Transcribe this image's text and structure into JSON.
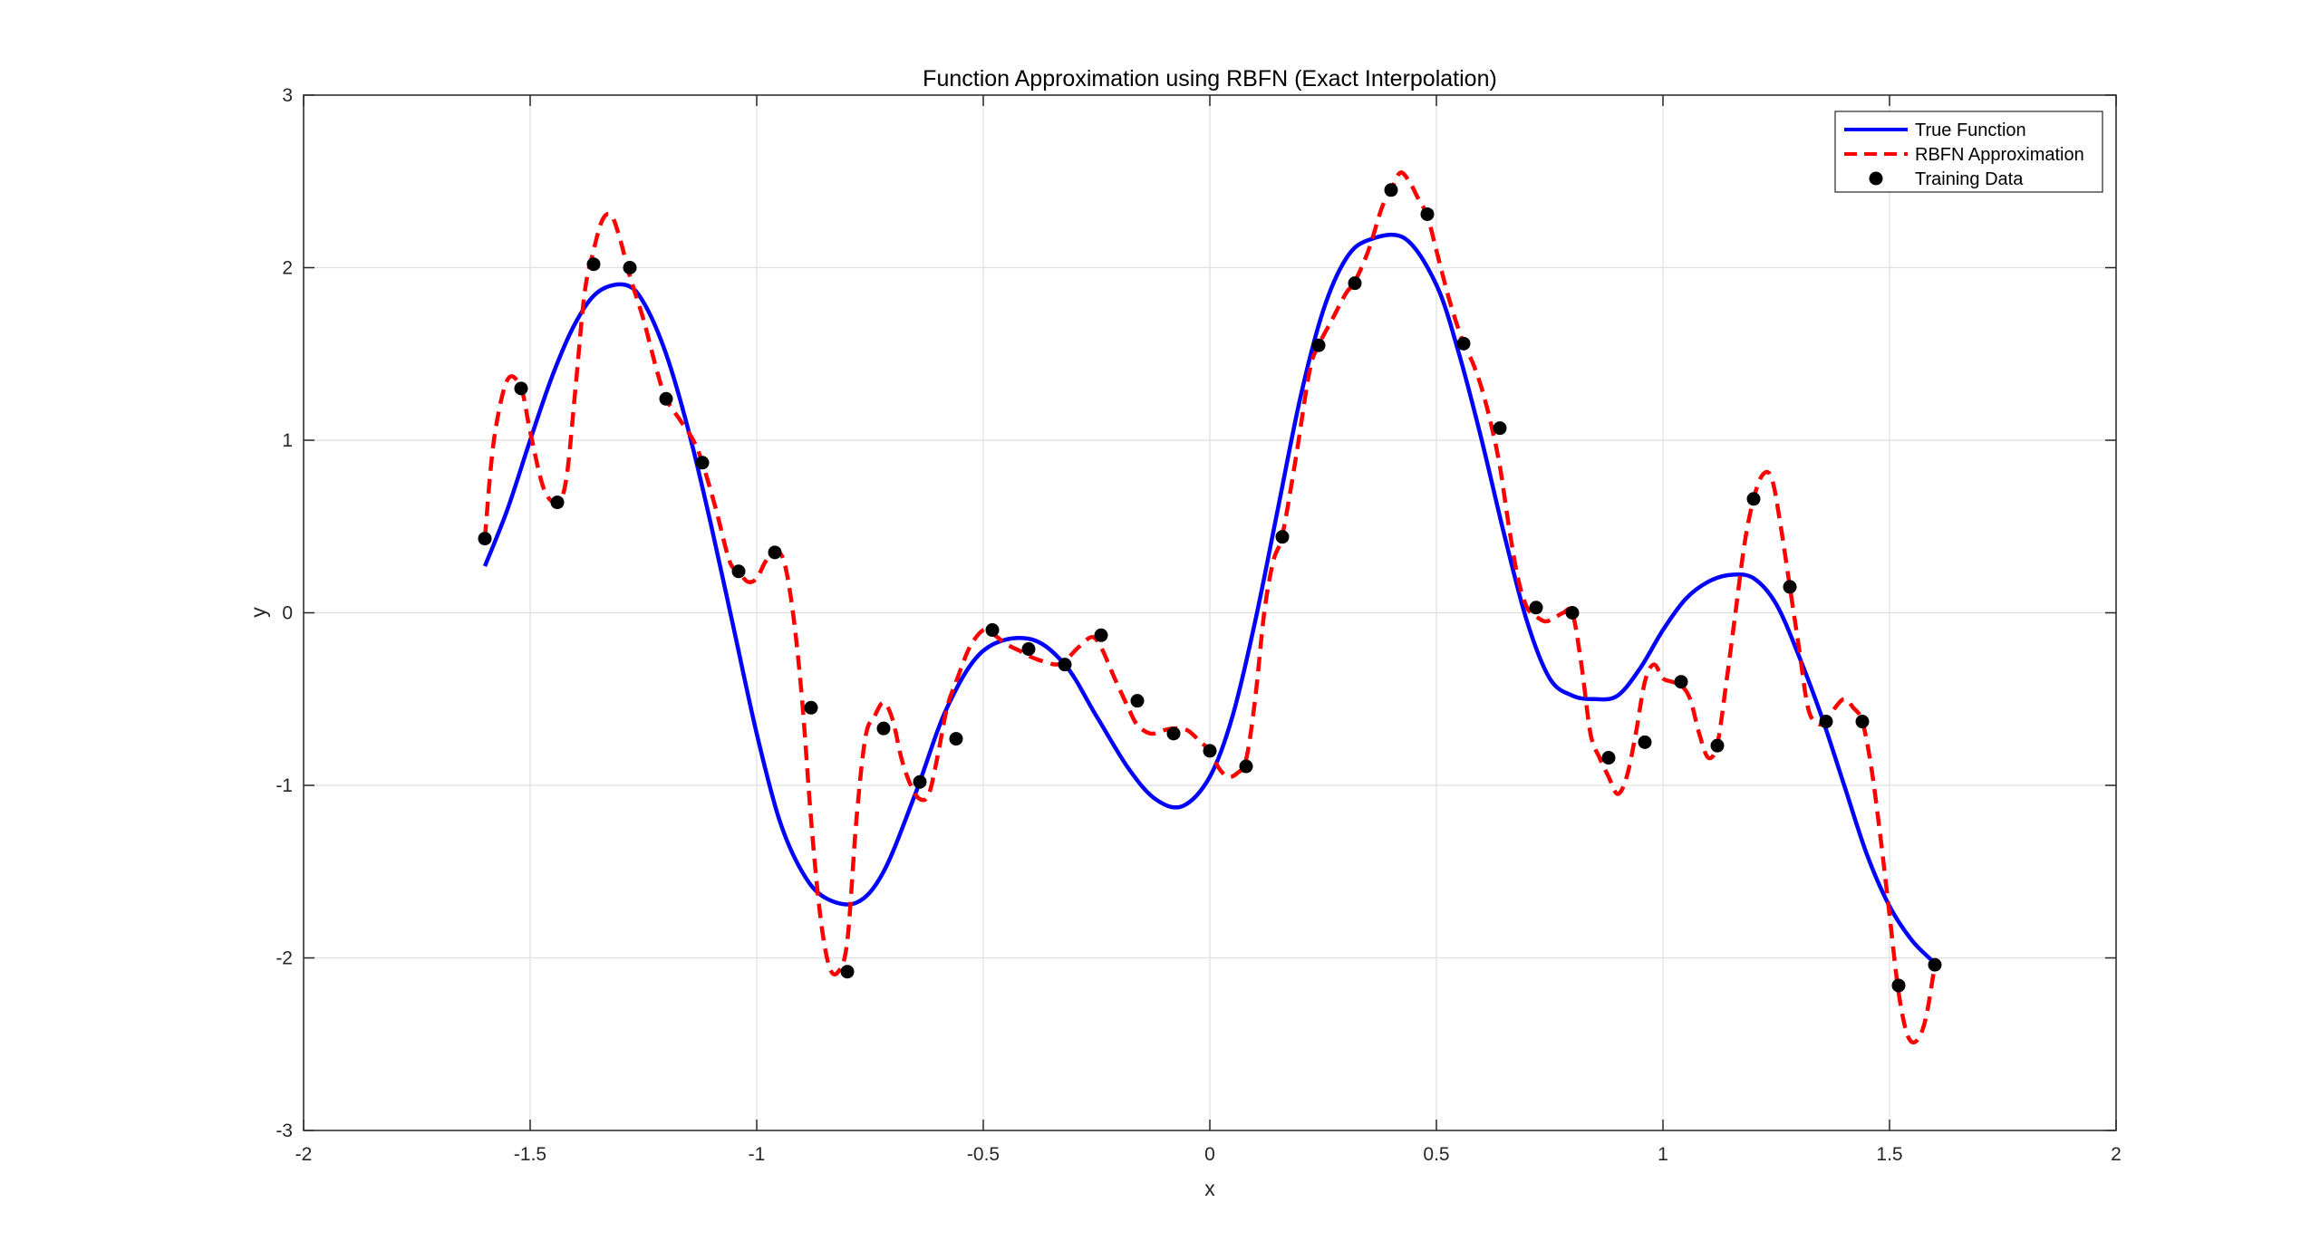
{
  "chart_data": {
    "type": "line",
    "title": "Function Approximation using RBFN (Exact Interpolation)",
    "xlabel": "x",
    "ylabel": "y",
    "xlim": [
      -2,
      2
    ],
    "ylim": [
      -3,
      3
    ],
    "xticks": [
      -2,
      -1.5,
      -1,
      -0.5,
      0,
      0.5,
      1,
      1.5,
      2
    ],
    "xtick_labels": [
      "-2",
      "-1.5",
      "-1",
      "-0.5",
      "0",
      "0.5",
      "1",
      "1.5",
      "2"
    ],
    "yticks": [
      -3,
      -2,
      -1,
      0,
      1,
      2,
      3
    ],
    "ytick_labels": [
      "-3",
      "-2",
      "-1",
      "0",
      "1",
      "2",
      "3"
    ],
    "grid": true,
    "legend_position": "top-right",
    "series": [
      {
        "name": "True Function",
        "style": "solid-line",
        "color": "#0000ff",
        "x": [
          -1.6,
          -1.55,
          -1.5,
          -1.45,
          -1.4,
          -1.35,
          -1.29,
          -1.25,
          -1.2,
          -1.15,
          -1.1,
          -1.05,
          -1.0,
          -0.95,
          -0.9,
          -0.85,
          -0.78,
          -0.72,
          -0.65,
          -0.58,
          -0.5,
          -0.4,
          -0.32,
          -0.25,
          -0.18,
          -0.12,
          -0.06,
          0.0,
          0.05,
          0.1,
          0.15,
          0.2,
          0.25,
          0.3,
          0.35,
          0.43,
          0.5,
          0.55,
          0.6,
          0.65,
          0.7,
          0.75,
          0.8,
          0.85,
          0.9,
          0.95,
          1.0,
          1.05,
          1.1,
          1.15,
          1.2,
          1.25,
          1.3,
          1.35,
          1.4,
          1.45,
          1.5,
          1.55,
          1.6
        ],
        "y": [
          0.27,
          0.6,
          1.0,
          1.38,
          1.68,
          1.86,
          1.9,
          1.8,
          1.5,
          1.05,
          0.5,
          -0.1,
          -0.7,
          -1.2,
          -1.5,
          -1.65,
          -1.68,
          -1.5,
          -1.05,
          -0.55,
          -0.22,
          -0.15,
          -0.3,
          -0.6,
          -0.9,
          -1.08,
          -1.12,
          -0.95,
          -0.6,
          -0.05,
          0.6,
          1.25,
          1.75,
          2.05,
          2.16,
          2.17,
          1.9,
          1.5,
          1.0,
          0.45,
          -0.05,
          -0.38,
          -0.48,
          -0.5,
          -0.48,
          -0.32,
          -0.1,
          0.08,
          0.18,
          0.22,
          0.2,
          0.05,
          -0.25,
          -0.6,
          -1.0,
          -1.4,
          -1.7,
          -1.9,
          -2.03
        ]
      },
      {
        "name": "RBFN Approximation",
        "style": "dashed-line",
        "color": "#ff0000",
        "x": [
          -1.6,
          -1.58,
          -1.55,
          -1.52,
          -1.5,
          -1.47,
          -1.44,
          -1.42,
          -1.4,
          -1.38,
          -1.36,
          -1.34,
          -1.32,
          -1.3,
          -1.28,
          -1.25,
          -1.22,
          -1.2,
          -1.17,
          -1.14,
          -1.12,
          -1.09,
          -1.06,
          -1.04,
          -1.02,
          -1.0,
          -0.98,
          -0.96,
          -0.94,
          -0.92,
          -0.9,
          -0.88,
          -0.86,
          -0.84,
          -0.82,
          -0.8,
          -0.78,
          -0.76,
          -0.74,
          -0.72,
          -0.7,
          -0.68,
          -0.66,
          -0.64,
          -0.62,
          -0.6,
          -0.58,
          -0.56,
          -0.53,
          -0.5,
          -0.48,
          -0.45,
          -0.42,
          -0.4,
          -0.37,
          -0.34,
          -0.32,
          -0.29,
          -0.26,
          -0.24,
          -0.21,
          -0.18,
          -0.16,
          -0.13,
          -0.1,
          -0.08,
          -0.05,
          -0.02,
          0.0,
          0.02,
          0.04,
          0.06,
          0.08,
          0.1,
          0.12,
          0.14,
          0.16,
          0.19,
          0.22,
          0.24,
          0.27,
          0.3,
          0.32,
          0.35,
          0.38,
          0.4,
          0.42,
          0.44,
          0.46,
          0.48,
          0.5,
          0.53,
          0.56,
          0.58,
          0.6,
          0.62,
          0.64,
          0.66,
          0.68,
          0.7,
          0.72,
          0.74,
          0.76,
          0.78,
          0.8,
          0.82,
          0.84,
          0.86,
          0.88,
          0.9,
          0.92,
          0.94,
          0.96,
          0.98,
          1.0,
          1.02,
          1.04,
          1.06,
          1.08,
          1.1,
          1.12,
          1.14,
          1.16,
          1.18,
          1.2,
          1.22,
          1.24,
          1.26,
          1.28,
          1.3,
          1.32,
          1.34,
          1.36,
          1.38,
          1.4,
          1.42,
          1.44,
          1.46,
          1.48,
          1.5,
          1.52,
          1.54,
          1.56,
          1.58,
          1.6
        ],
        "y": [
          0.43,
          1.0,
          1.35,
          1.3,
          1.05,
          0.72,
          0.64,
          0.78,
          1.3,
          1.85,
          2.1,
          2.28,
          2.3,
          2.15,
          1.95,
          1.7,
          1.4,
          1.24,
          1.12,
          1.0,
          0.87,
          0.6,
          0.3,
          0.24,
          0.18,
          0.2,
          0.3,
          0.35,
          0.3,
          0.0,
          -0.5,
          -1.2,
          -1.75,
          -2.05,
          -2.08,
          -1.9,
          -1.2,
          -0.72,
          -0.6,
          -0.52,
          -0.62,
          -0.85,
          -1.0,
          -1.08,
          -1.05,
          -0.82,
          -0.55,
          -0.4,
          -0.2,
          -0.1,
          -0.12,
          -0.18,
          -0.22,
          -0.25,
          -0.28,
          -0.3,
          -0.28,
          -0.2,
          -0.14,
          -0.2,
          -0.38,
          -0.55,
          -0.65,
          -0.7,
          -0.68,
          -0.67,
          -0.68,
          -0.75,
          -0.8,
          -0.9,
          -0.95,
          -0.93,
          -0.85,
          -0.5,
          0.0,
          0.3,
          0.45,
          0.9,
          1.4,
          1.55,
          1.7,
          1.85,
          1.92,
          2.1,
          2.35,
          2.45,
          2.55,
          2.5,
          2.4,
          2.3,
          2.1,
          1.8,
          1.56,
          1.45,
          1.3,
          1.1,
          0.85,
          0.5,
          0.2,
          0.03,
          -0.02,
          -0.05,
          -0.03,
          0.0,
          0.0,
          -0.3,
          -0.7,
          -0.84,
          -0.95,
          -1.05,
          -0.95,
          -0.7,
          -0.4,
          -0.3,
          -0.38,
          -0.4,
          -0.42,
          -0.5,
          -0.7,
          -0.84,
          -0.76,
          -0.4,
          0.0,
          0.4,
          0.66,
          0.8,
          0.78,
          0.5,
          0.15,
          -0.2,
          -0.55,
          -0.64,
          -0.63,
          -0.55,
          -0.5,
          -0.55,
          -0.63,
          -0.9,
          -1.3,
          -1.75,
          -2.2,
          -2.45,
          -2.48,
          -2.35,
          -2.04
        ]
      },
      {
        "name": "Training Data",
        "style": "markers",
        "color": "#000000",
        "x": [
          -1.6,
          -1.52,
          -1.44,
          -1.36,
          -1.28,
          -1.2,
          -1.12,
          -1.04,
          -0.96,
          -0.88,
          -0.8,
          -0.72,
          -0.64,
          -0.56,
          -0.48,
          -0.4,
          -0.32,
          -0.24,
          -0.16,
          -0.08,
          0.0,
          0.08,
          0.16,
          0.24,
          0.32,
          0.4,
          0.48,
          0.56,
          0.64,
          0.72,
          0.8,
          0.88,
          0.96,
          1.04,
          1.12,
          1.2,
          1.28,
          1.36,
          1.44,
          1.52,
          1.6
        ],
        "y": [
          0.43,
          1.3,
          0.64,
          2.02,
          2.0,
          1.24,
          0.87,
          0.24,
          0.35,
          -0.55,
          -2.08,
          -0.67,
          -0.98,
          -0.73,
          -0.1,
          -0.21,
          -0.3,
          -0.13,
          -0.51,
          -0.7,
          -0.8,
          -0.89,
          0.44,
          1.55,
          1.91,
          2.45,
          2.31,
          1.56,
          1.07,
          0.03,
          0.0,
          -0.84,
          -0.75,
          -0.4,
          -0.77,
          0.66,
          0.15,
          -0.63,
          -0.63,
          -2.16,
          -2.04
        ]
      }
    ]
  }
}
